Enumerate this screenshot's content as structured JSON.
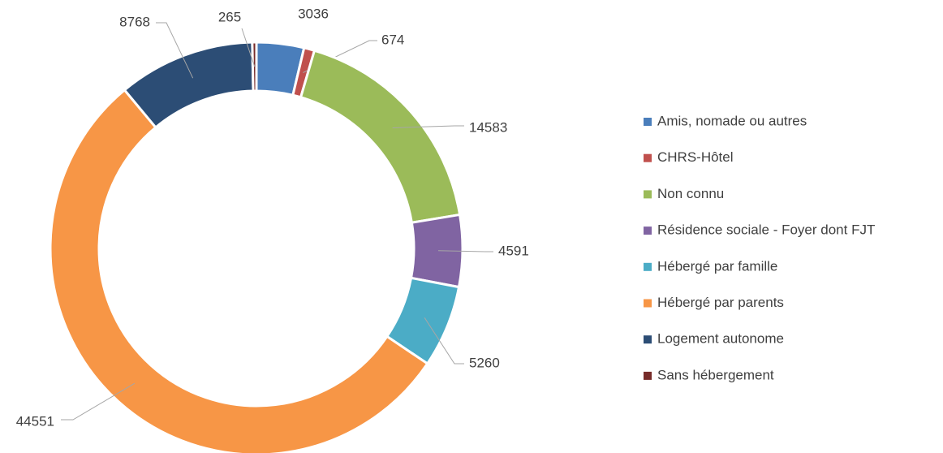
{
  "chart_data": {
    "type": "donut",
    "categories": [
      "Amis, nomade ou autres",
      "CHRS-Hôtel",
      "Non connu",
      "Résidence sociale - Foyer dont FJT",
      "Hébergé par famille",
      "Hébergé par parents",
      "Logement autonome",
      "Sans hébergement"
    ],
    "values": [
      3036,
      674,
      14583,
      4591,
      5260,
      44551,
      8768,
      265
    ],
    "colors": [
      "#4a7ebb",
      "#c0504d",
      "#9bbb59",
      "#8064a2",
      "#4bacc6",
      "#f79646",
      "#2c4d75",
      "#772c2a"
    ],
    "legend": "right"
  }
}
